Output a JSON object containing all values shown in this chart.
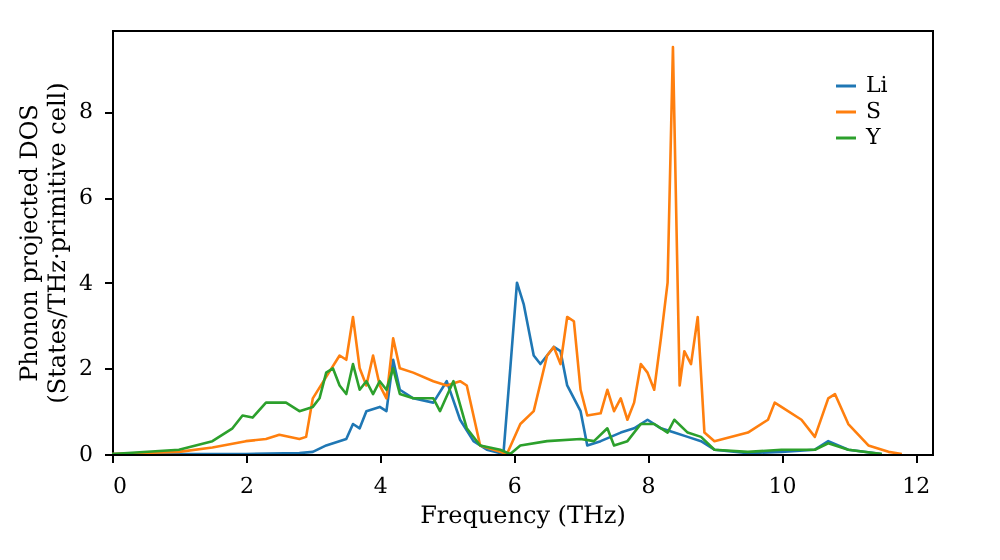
{
  "chart_data": {
    "type": "line",
    "xlabel": "Frequency (THz)",
    "ylabel": "Phonon projected DOS\n(States/THz·primitive cell)",
    "xlim": [
      0,
      12.25
    ],
    "ylim": [
      0,
      9.9
    ],
    "xticks": [
      0,
      2,
      4,
      6,
      8,
      10,
      12
    ],
    "yticks": [
      0,
      2,
      4,
      6,
      8
    ],
    "grid": false,
    "legend": "top right",
    "marker": "none",
    "line_style": "solid",
    "series": [
      {
        "name": "Li",
        "color": "#1f77b4",
        "x": [
          0,
          1,
          2,
          2.8,
          3.0,
          3.2,
          3.5,
          3.6,
          3.7,
          3.8,
          4.0,
          4.1,
          4.2,
          4.3,
          4.5,
          4.8,
          5.0,
          5.2,
          5.4,
          5.6,
          5.8,
          5.85,
          5.95,
          6.05,
          6.15,
          6.3,
          6.4,
          6.5,
          6.6,
          6.7,
          6.8,
          7.0,
          7.1,
          7.3,
          7.6,
          7.8,
          8.0,
          8.2,
          8.4,
          8.6,
          8.8,
          9.0,
          9.5,
          10.0,
          10.5,
          10.7,
          11.0,
          11.5
        ],
        "values": [
          0,
          0,
          0,
          0.02,
          0.05,
          0.2,
          0.35,
          0.7,
          0.6,
          1.0,
          1.1,
          1.0,
          2.2,
          1.5,
          1.3,
          1.2,
          1.7,
          0.8,
          0.3,
          0.1,
          0.02,
          0.05,
          2.0,
          4.0,
          3.5,
          2.3,
          2.1,
          2.3,
          2.5,
          2.4,
          1.6,
          1.0,
          0.2,
          0.3,
          0.5,
          0.6,
          0.8,
          0.6,
          0.5,
          0.4,
          0.3,
          0.1,
          0.02,
          0.05,
          0.1,
          0.3,
          0.1,
          0
        ]
      },
      {
        "name": "S",
        "color": "#ff7f0e",
        "x": [
          0,
          1,
          1.5,
          2.0,
          2.3,
          2.5,
          2.8,
          2.9,
          3.0,
          3.2,
          3.4,
          3.5,
          3.6,
          3.7,
          3.8,
          3.9,
          4.0,
          4.1,
          4.2,
          4.3,
          4.5,
          4.8,
          5.0,
          5.2,
          5.3,
          5.5,
          5.8,
          5.9,
          6.1,
          6.3,
          6.5,
          6.6,
          6.7,
          6.8,
          6.9,
          7.0,
          7.1,
          7.3,
          7.4,
          7.5,
          7.6,
          7.7,
          7.8,
          7.9,
          8.0,
          8.1,
          8.2,
          8.3,
          8.38,
          8.48,
          8.55,
          8.65,
          8.75,
          8.85,
          9.0,
          9.5,
          9.8,
          9.9,
          10.0,
          10.3,
          10.5,
          10.7,
          10.8,
          11.0,
          11.3,
          11.6,
          11.8
        ],
        "values": [
          0,
          0.05,
          0.15,
          0.3,
          0.35,
          0.45,
          0.35,
          0.4,
          1.3,
          1.8,
          2.3,
          2.2,
          3.2,
          2.0,
          1.6,
          2.3,
          1.6,
          1.3,
          2.7,
          2.0,
          1.9,
          1.7,
          1.6,
          1.7,
          1.6,
          0.2,
          0.05,
          0,
          0.7,
          1.0,
          2.3,
          2.5,
          2.1,
          3.2,
          3.1,
          1.5,
          0.9,
          0.95,
          1.5,
          1.0,
          1.3,
          0.8,
          1.2,
          2.1,
          1.9,
          1.5,
          2.7,
          4.0,
          9.5,
          1.6,
          2.4,
          2.1,
          3.2,
          0.5,
          0.3,
          0.5,
          0.8,
          1.2,
          1.1,
          0.8,
          0.4,
          1.3,
          1.4,
          0.7,
          0.2,
          0.05,
          0
        ]
      },
      {
        "name": "Y",
        "color": "#2ca02c",
        "x": [
          0,
          1,
          1.5,
          1.8,
          1.95,
          2.1,
          2.3,
          2.6,
          2.8,
          3.0,
          3.1,
          3.2,
          3.3,
          3.4,
          3.5,
          3.6,
          3.7,
          3.8,
          3.9,
          4.0,
          4.1,
          4.2,
          4.3,
          4.5,
          4.8,
          4.9,
          5.1,
          5.3,
          5.5,
          5.8,
          5.95,
          6.1,
          6.5,
          7.0,
          7.2,
          7.4,
          7.5,
          7.7,
          7.9,
          8.1,
          8.3,
          8.4,
          8.6,
          8.8,
          9.0,
          9.5,
          10.0,
          10.5,
          10.7,
          11.0,
          11.5
        ],
        "values": [
          0,
          0.1,
          0.3,
          0.6,
          0.9,
          0.85,
          1.2,
          1.2,
          1.0,
          1.1,
          1.3,
          1.9,
          2.0,
          1.6,
          1.4,
          2.1,
          1.5,
          1.7,
          1.4,
          1.7,
          1.5,
          2.0,
          1.4,
          1.3,
          1.3,
          1.0,
          1.7,
          0.6,
          0.2,
          0.1,
          0,
          0.2,
          0.3,
          0.35,
          0.3,
          0.6,
          0.2,
          0.3,
          0.7,
          0.7,
          0.5,
          0.8,
          0.5,
          0.4,
          0.1,
          0.05,
          0.1,
          0.1,
          0.25,
          0.1,
          0
        ]
      }
    ]
  }
}
